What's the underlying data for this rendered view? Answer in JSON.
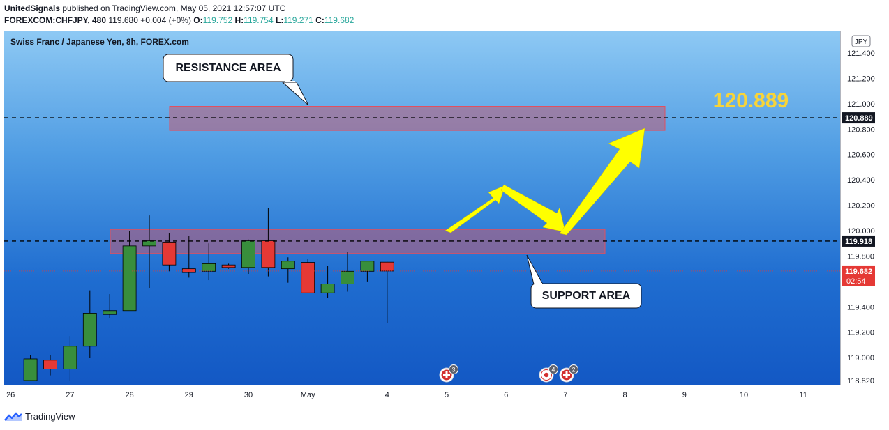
{
  "header": {
    "author": "UnitedSignals",
    "published_text": "published on TradingView.com, May 05, 2021 12:57:07 UTC",
    "symbol": "FOREXCOM:CHFJPY, 480",
    "last": "119.680",
    "change": "+0.004 (+0%)",
    "o_label": "O:",
    "o_value": "119.752",
    "h_label": "H:",
    "h_value": "119.754",
    "l_label": "L:",
    "l_value": "119.271",
    "c_label": "C:",
    "c_value": "119.682"
  },
  "chart_title": "Swiss Franc / Japanese Yen, 8h, FOREX.com",
  "currency_badge": "JPY",
  "annotations": {
    "resistance": "RESISTANCE AREA",
    "support": "SUPPORT AREA",
    "target": "120.889"
  },
  "price_labels": {
    "target_tag": "120.889",
    "support_tag": "119.918",
    "current_tag": "119.682",
    "countdown": "02:54"
  },
  "event_badges": [
    {
      "icon": "flag-ch-icon",
      "count": "3"
    },
    {
      "icon": "flag-jp-icon",
      "count": "4"
    },
    {
      "icon": "flag-ch-icon",
      "count": "2"
    }
  ],
  "brand": "TradingView",
  "colors": {
    "up": "#388e3c",
    "down": "#e53935",
    "zone": "#c25b73",
    "arrow": "#ffff00",
    "target_text": "#f7d43a",
    "current_tag": "#e53935"
  },
  "chart_data": {
    "type": "candlestick",
    "title": "Swiss Franc / Japanese Yen, 8h, FOREX.com",
    "ylim": [
      118.82,
      121.5
    ],
    "y_ticks": [
      121.4,
      121.2,
      121.0,
      120.8,
      120.6,
      120.4,
      120.2,
      120.0,
      119.8,
      119.6,
      119.4,
      119.2,
      119.0,
      118.82
    ],
    "y_tick_labels": [
      "121.400",
      "121.200",
      "121.000",
      "120.800",
      "120.600",
      "120.400",
      "120.200",
      "120.000",
      "119.800",
      "119.600",
      "119.400",
      "119.200",
      "119.000",
      "118.820"
    ],
    "x_ticks": [
      {
        "label": "26",
        "bar": -12
      },
      {
        "label": "27",
        "bar": -9
      },
      {
        "label": "28",
        "bar": -6
      },
      {
        "label": "29",
        "bar": -3
      },
      {
        "label": "30",
        "bar": 0
      },
      {
        "label": "May",
        "bar": 3
      },
      {
        "label": "4",
        "bar": 7
      },
      {
        "label": "5",
        "bar": 10
      },
      {
        "label": "6",
        "bar": 13
      },
      {
        "label": "7",
        "bar": 16
      },
      {
        "label": "8",
        "bar": 19
      },
      {
        "label": "9",
        "bar": 22
      },
      {
        "label": "10",
        "bar": 25
      },
      {
        "label": "11",
        "bar": 28
      }
    ],
    "candles": [
      {
        "bar": -11,
        "o": 118.82,
        "h": 119.02,
        "l": 118.82,
        "c": 118.99
      },
      {
        "bar": -10,
        "o": 118.98,
        "h": 119.02,
        "l": 118.86,
        "c": 118.91
      },
      {
        "bar": -9,
        "o": 118.91,
        "h": 119.17,
        "l": 118.82,
        "c": 119.09
      },
      {
        "bar": -8,
        "o": 119.09,
        "h": 119.53,
        "l": 119.0,
        "c": 119.35
      },
      {
        "bar": -7,
        "o": 119.34,
        "h": 119.5,
        "l": 119.31,
        "c": 119.37
      },
      {
        "bar": -6,
        "o": 119.37,
        "h": 120.0,
        "l": 119.37,
        "c": 119.88
      },
      {
        "bar": -5,
        "o": 119.88,
        "h": 120.12,
        "l": 119.55,
        "c": 119.92
      },
      {
        "bar": -4,
        "o": 119.91,
        "h": 119.98,
        "l": 119.68,
        "c": 119.73
      },
      {
        "bar": -3,
        "o": 119.7,
        "h": 119.96,
        "l": 119.63,
        "c": 119.67
      },
      {
        "bar": -2,
        "o": 119.68,
        "h": 119.9,
        "l": 119.61,
        "c": 119.74
      },
      {
        "bar": -1,
        "o": 119.73,
        "h": 119.74,
        "l": 119.7,
        "c": 119.71
      },
      {
        "bar": 0,
        "o": 119.71,
        "h": 119.93,
        "l": 119.66,
        "c": 119.92
      },
      {
        "bar": 1,
        "o": 119.92,
        "h": 120.18,
        "l": 119.64,
        "c": 119.71
      },
      {
        "bar": 2,
        "o": 119.7,
        "h": 119.79,
        "l": 119.59,
        "c": 119.76
      },
      {
        "bar": 3,
        "o": 119.75,
        "h": 119.78,
        "l": 119.51,
        "c": 119.51
      },
      {
        "bar": 4,
        "o": 119.51,
        "h": 119.72,
        "l": 119.47,
        "c": 119.58
      },
      {
        "bar": 5,
        "o": 119.58,
        "h": 119.83,
        "l": 119.52,
        "c": 119.68
      },
      {
        "bar": 6,
        "o": 119.68,
        "h": 119.76,
        "l": 119.6,
        "c": 119.76
      },
      {
        "bar": 7,
        "o": 119.752,
        "h": 119.754,
        "l": 119.271,
        "c": 119.682
      }
    ],
    "zones": [
      {
        "name": "resistance",
        "from": 120.79,
        "to": 120.98
      },
      {
        "name": "support",
        "from": 119.82,
        "to": 120.01
      }
    ],
    "levels": [
      120.889,
      119.918
    ],
    "current_price": 119.682
  }
}
